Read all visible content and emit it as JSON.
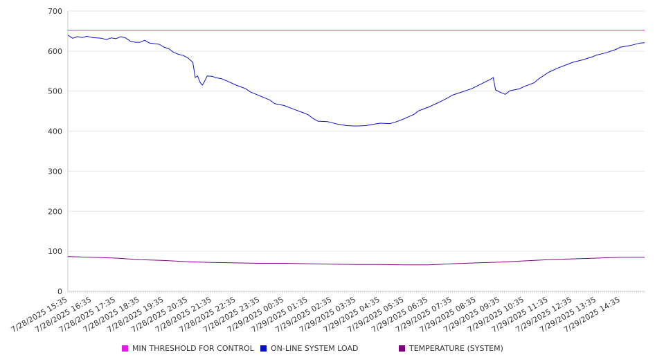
{
  "chart_data": {
    "type": "line",
    "y_ticks": [
      0,
      100,
      200,
      300,
      400,
      500,
      600,
      700
    ],
    "ylim": [
      0,
      700
    ],
    "x_tick_labels": [
      "7/28/2025 15:35",
      "7/28/2025 16:35",
      "7/28/2025 17:35",
      "7/28/2025 18:35",
      "7/28/2025 19:35",
      "7/28/2025 20:35",
      "7/28/2025 21:35",
      "7/28/2025 22:35",
      "7/28/2025 23:35",
      "7/29/2025 00:35",
      "7/29/2025 01:35",
      "7/29/2025 02:35",
      "7/29/2025 03:35",
      "7/29/2025 04:35",
      "7/29/2025 05:35",
      "7/29/2025 06:35",
      "7/29/2025 07:35",
      "7/29/2025 08:35",
      "7/29/2025 09:35",
      "7/29/2025 10:35",
      "7/29/2025 11:35",
      "7/29/2025 12:35",
      "7/29/2025 13:35",
      "7/29/2025 14:35"
    ],
    "grid": true,
    "legend_position": "bottom",
    "series": [
      {
        "name": "MIN THRESHOLD FOR CONTROL",
        "color": "#e31be3",
        "points": [
          [
            "7/28/2025 15:35",
            652
          ],
          [
            "7/29/2025 15:35",
            652
          ]
        ]
      },
      {
        "name": "ON-LINE SYSTEM LOAD",
        "color": "#0a10c8",
        "points": [
          [
            "7/28/2025 15:35",
            640
          ],
          [
            "7/28/2025 15:47",
            632
          ],
          [
            "7/28/2025 15:59",
            636
          ],
          [
            "7/28/2025 16:11",
            634
          ],
          [
            "7/28/2025 16:23",
            637
          ],
          [
            "7/28/2025 16:35",
            634
          ],
          [
            "7/28/2025 16:59",
            632
          ],
          [
            "7/28/2025 17:11",
            629
          ],
          [
            "7/28/2025 17:23",
            633
          ],
          [
            "7/28/2025 17:35",
            631
          ],
          [
            "7/28/2025 17:47",
            636
          ],
          [
            "7/28/2025 17:59",
            633
          ],
          [
            "7/28/2025 18:11",
            625
          ],
          [
            "7/28/2025 18:23",
            622
          ],
          [
            "7/28/2025 18:35",
            622
          ],
          [
            "7/28/2025 18:47",
            627
          ],
          [
            "7/28/2025 18:59",
            620
          ],
          [
            "7/28/2025 19:23",
            617
          ],
          [
            "7/28/2025 19:35",
            610
          ],
          [
            "7/28/2025 19:47",
            606
          ],
          [
            "7/28/2025 19:59",
            597
          ],
          [
            "7/28/2025 20:11",
            592
          ],
          [
            "7/28/2025 20:23",
            589
          ],
          [
            "7/28/2025 20:35",
            583
          ],
          [
            "7/28/2025 20:47",
            572
          ],
          [
            "7/28/2025 20:53",
            534
          ],
          [
            "7/28/2025 20:59",
            538
          ],
          [
            "7/28/2025 21:05",
            522
          ],
          [
            "7/28/2025 21:11",
            515
          ],
          [
            "7/28/2025 21:17",
            526
          ],
          [
            "7/28/2025 21:23",
            538
          ],
          [
            "7/28/2025 21:35",
            537
          ],
          [
            "7/28/2025 21:47",
            533
          ],
          [
            "7/28/2025 21:59",
            531
          ],
          [
            "7/28/2025 22:11",
            526
          ],
          [
            "7/28/2025 22:35",
            515
          ],
          [
            "7/28/2025 22:59",
            506
          ],
          [
            "7/28/2025 23:11",
            498
          ],
          [
            "7/28/2025 23:35",
            488
          ],
          [
            "7/28/2025 23:59",
            478
          ],
          [
            "7/29/2025 00:11",
            469
          ],
          [
            "7/29/2025 00:35",
            464
          ],
          [
            "7/29/2025 00:59",
            455
          ],
          [
            "7/29/2025 01:23",
            446
          ],
          [
            "7/29/2025 01:35",
            441
          ],
          [
            "7/29/2025 01:47",
            432
          ],
          [
            "7/29/2025 01:59",
            425
          ],
          [
            "7/29/2025 02:23",
            424
          ],
          [
            "7/29/2025 02:47",
            418
          ],
          [
            "7/29/2025 03:11",
            414
          ],
          [
            "7/29/2025 03:35",
            413
          ],
          [
            "7/29/2025 03:59",
            414
          ],
          [
            "7/29/2025 04:11",
            416
          ],
          [
            "7/29/2025 04:35",
            420
          ],
          [
            "7/29/2025 04:59",
            419
          ],
          [
            "7/29/2025 05:11",
            422
          ],
          [
            "7/29/2025 05:35",
            431
          ],
          [
            "7/29/2025 05:59",
            442
          ],
          [
            "7/29/2025 06:11",
            451
          ],
          [
            "7/29/2025 06:35",
            460
          ],
          [
            "7/29/2025 06:59",
            471
          ],
          [
            "7/29/2025 07:23",
            483
          ],
          [
            "7/29/2025 07:35",
            490
          ],
          [
            "7/29/2025 07:59",
            498
          ],
          [
            "7/29/2025 08:23",
            506
          ],
          [
            "7/29/2025 08:35",
            512
          ],
          [
            "7/29/2025 08:59",
            524
          ],
          [
            "7/29/2025 09:11",
            530
          ],
          [
            "7/29/2025 09:17",
            534
          ],
          [
            "7/29/2025 09:23",
            503
          ],
          [
            "7/29/2025 09:35",
            497
          ],
          [
            "7/29/2025 09:47",
            492
          ],
          [
            "7/29/2025 09:59",
            501
          ],
          [
            "7/29/2025 10:23",
            506
          ],
          [
            "7/29/2025 10:35",
            512
          ],
          [
            "7/29/2025 10:59",
            521
          ],
          [
            "7/29/2025 11:11",
            531
          ],
          [
            "7/29/2025 11:35",
            547
          ],
          [
            "7/29/2025 11:59",
            558
          ],
          [
            "7/29/2025 12:23",
            567
          ],
          [
            "7/29/2025 12:35",
            572
          ],
          [
            "7/29/2025 12:59",
            578
          ],
          [
            "7/29/2025 13:23",
            585
          ],
          [
            "7/29/2025 13:35",
            590
          ],
          [
            "7/29/2025 13:59",
            596
          ],
          [
            "7/29/2025 14:23",
            604
          ],
          [
            "7/29/2025 14:35",
            610
          ],
          [
            "7/29/2025 14:59",
            614
          ],
          [
            "7/29/2025 15:23",
            620
          ],
          [
            "7/29/2025 15:35",
            621
          ]
        ]
      },
      {
        "name": "TEMPERATURE (SYSTEM)",
        "color": "#800080",
        "points": [
          [
            "7/28/2025 15:35",
            87
          ],
          [
            "7/28/2025 16:35",
            85
          ],
          [
            "7/28/2025 17:35",
            83
          ],
          [
            "7/28/2025 18:35",
            79
          ],
          [
            "7/28/2025 19:35",
            77
          ],
          [
            "7/28/2025 20:35",
            74
          ],
          [
            "7/28/2025 21:35",
            72
          ],
          [
            "7/28/2025 22:35",
            71
          ],
          [
            "7/28/2025 23:35",
            70
          ],
          [
            "7/29/2025 00:35",
            70
          ],
          [
            "7/29/2025 01:35",
            69
          ],
          [
            "7/29/2025 02:35",
            68
          ],
          [
            "7/29/2025 03:35",
            67
          ],
          [
            "7/29/2025 04:35",
            67
          ],
          [
            "7/29/2025 05:35",
            66
          ],
          [
            "7/29/2025 06:35",
            66
          ],
          [
            "7/29/2025 07:35",
            69
          ],
          [
            "7/29/2025 08:35",
            71
          ],
          [
            "7/29/2025 09:35",
            73
          ],
          [
            "7/29/2025 10:35",
            76
          ],
          [
            "7/29/2025 11:35",
            79
          ],
          [
            "7/29/2025 12:35",
            81
          ],
          [
            "7/29/2025 13:35",
            83
          ],
          [
            "7/29/2025 14:35",
            85
          ],
          [
            "7/29/2025 15:35",
            85
          ]
        ]
      }
    ]
  }
}
